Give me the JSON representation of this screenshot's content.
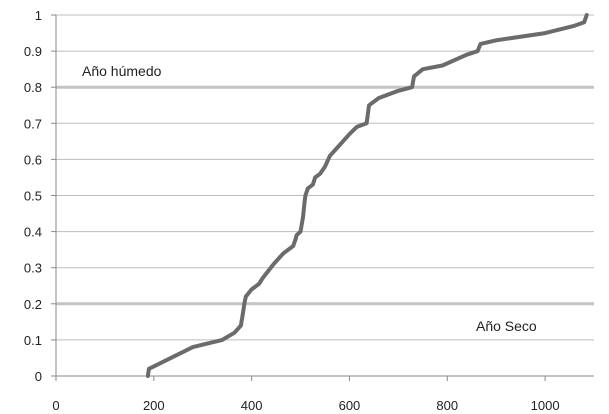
{
  "chart_data": {
    "type": "line",
    "title": "",
    "xlabel": "",
    "ylabel": "",
    "xlim": [
      0,
      1100
    ],
    "ylim": [
      0,
      1
    ],
    "grid": true,
    "x_ticks": [
      "0",
      "200",
      "400",
      "600",
      "800",
      "1000"
    ],
    "y_ticks": [
      "0",
      "0.1",
      "0.2",
      "0.3",
      "0.4",
      "0.5",
      "0.6",
      "0.7",
      "0.8",
      "0.9",
      "1"
    ],
    "threshold_lines": [
      {
        "y": 0.2,
        "label": "Año Seco"
      },
      {
        "y": 0.8,
        "label": "Año húmedo"
      }
    ],
    "series": [
      {
        "color": "#6b6b6b",
        "points": [
          [
            188,
            0.0
          ],
          [
            190,
            0.02
          ],
          [
            205,
            0.03
          ],
          [
            235,
            0.05
          ],
          [
            280,
            0.08
          ],
          [
            340,
            0.1
          ],
          [
            365,
            0.12
          ],
          [
            378,
            0.14
          ],
          [
            383,
            0.18
          ],
          [
            385,
            0.2
          ],
          [
            388,
            0.22
          ],
          [
            400,
            0.24
          ],
          [
            415,
            0.255
          ],
          [
            422,
            0.27
          ],
          [
            445,
            0.31
          ],
          [
            465,
            0.34
          ],
          [
            485,
            0.36
          ],
          [
            490,
            0.38
          ],
          [
            492,
            0.39
          ],
          [
            500,
            0.4
          ],
          [
            505,
            0.44
          ],
          [
            508,
            0.48
          ],
          [
            510,
            0.5
          ],
          [
            515,
            0.52
          ],
          [
            525,
            0.53
          ],
          [
            530,
            0.55
          ],
          [
            540,
            0.56
          ],
          [
            550,
            0.58
          ],
          [
            560,
            0.61
          ],
          [
            580,
            0.64
          ],
          [
            600,
            0.67
          ],
          [
            615,
            0.69
          ],
          [
            635,
            0.7
          ],
          [
            637,
            0.72
          ],
          [
            640,
            0.75
          ],
          [
            660,
            0.77
          ],
          [
            700,
            0.79
          ],
          [
            728,
            0.8
          ],
          [
            732,
            0.83
          ],
          [
            750,
            0.85
          ],
          [
            790,
            0.86
          ],
          [
            840,
            0.89
          ],
          [
            862,
            0.9
          ],
          [
            868,
            0.92
          ],
          [
            900,
            0.93
          ],
          [
            1000,
            0.95
          ],
          [
            1060,
            0.97
          ],
          [
            1080,
            0.98
          ],
          [
            1085,
            1.0
          ]
        ]
      }
    ]
  }
}
